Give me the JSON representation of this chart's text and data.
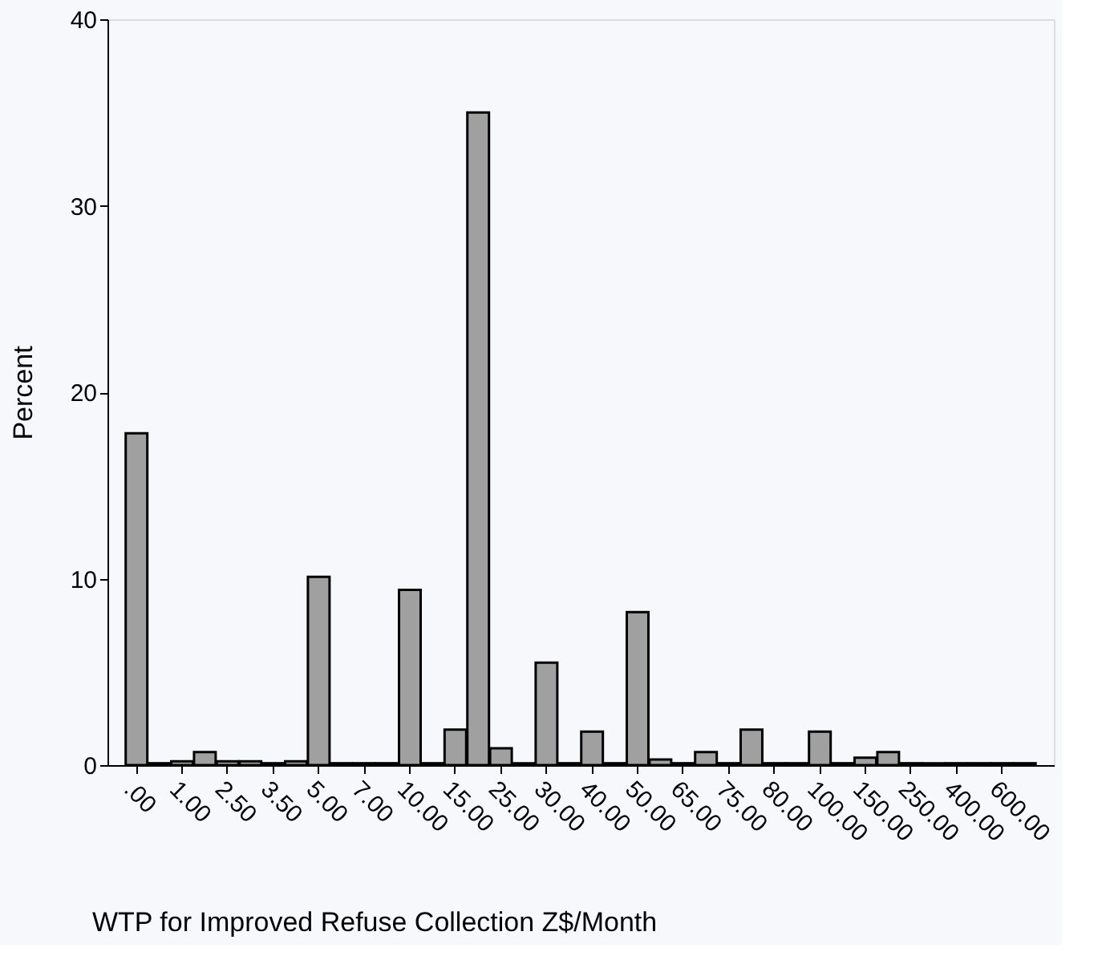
{
  "chart_data": {
    "type": "bar",
    "xlabel": "WTP for Improved Refuse Collection Z$/Month",
    "ylabel": "Percent",
    "categories": [
      ".00",
      null,
      "1.00",
      null,
      "2.50",
      null,
      "3.50",
      null,
      "5.00",
      null,
      "7.00",
      null,
      "10.00",
      null,
      "15.00",
      null,
      "25.00",
      null,
      "30.00",
      null,
      "40.00",
      null,
      "50.00",
      null,
      "65.00",
      null,
      "75.00",
      null,
      "80.00",
      null,
      "100.00",
      null,
      "150.00",
      null,
      "250.00",
      null,
      "400.00",
      null,
      "600.00",
      null
    ],
    "values": [
      17.8,
      0.1,
      0.2,
      0.7,
      0.2,
      0.2,
      0.1,
      0.2,
      10.1,
      0.1,
      0.1,
      0.1,
      9.4,
      0.1,
      1.9,
      35.0,
      0.9,
      0.1,
      5.5,
      0.1,
      1.8,
      0.1,
      8.2,
      0.3,
      0.1,
      0.7,
      0.1,
      1.9,
      0.1,
      0.1,
      1.8,
      0.1,
      0.4,
      0.7,
      0.1,
      0.1,
      0.1,
      0.1,
      0.1,
      0.1
    ],
    "color": "#a0a0a0",
    "ylim": [
      0,
      40
    ],
    "yticks": [
      0,
      10,
      20,
      30,
      40
    ],
    "grid": false
  }
}
